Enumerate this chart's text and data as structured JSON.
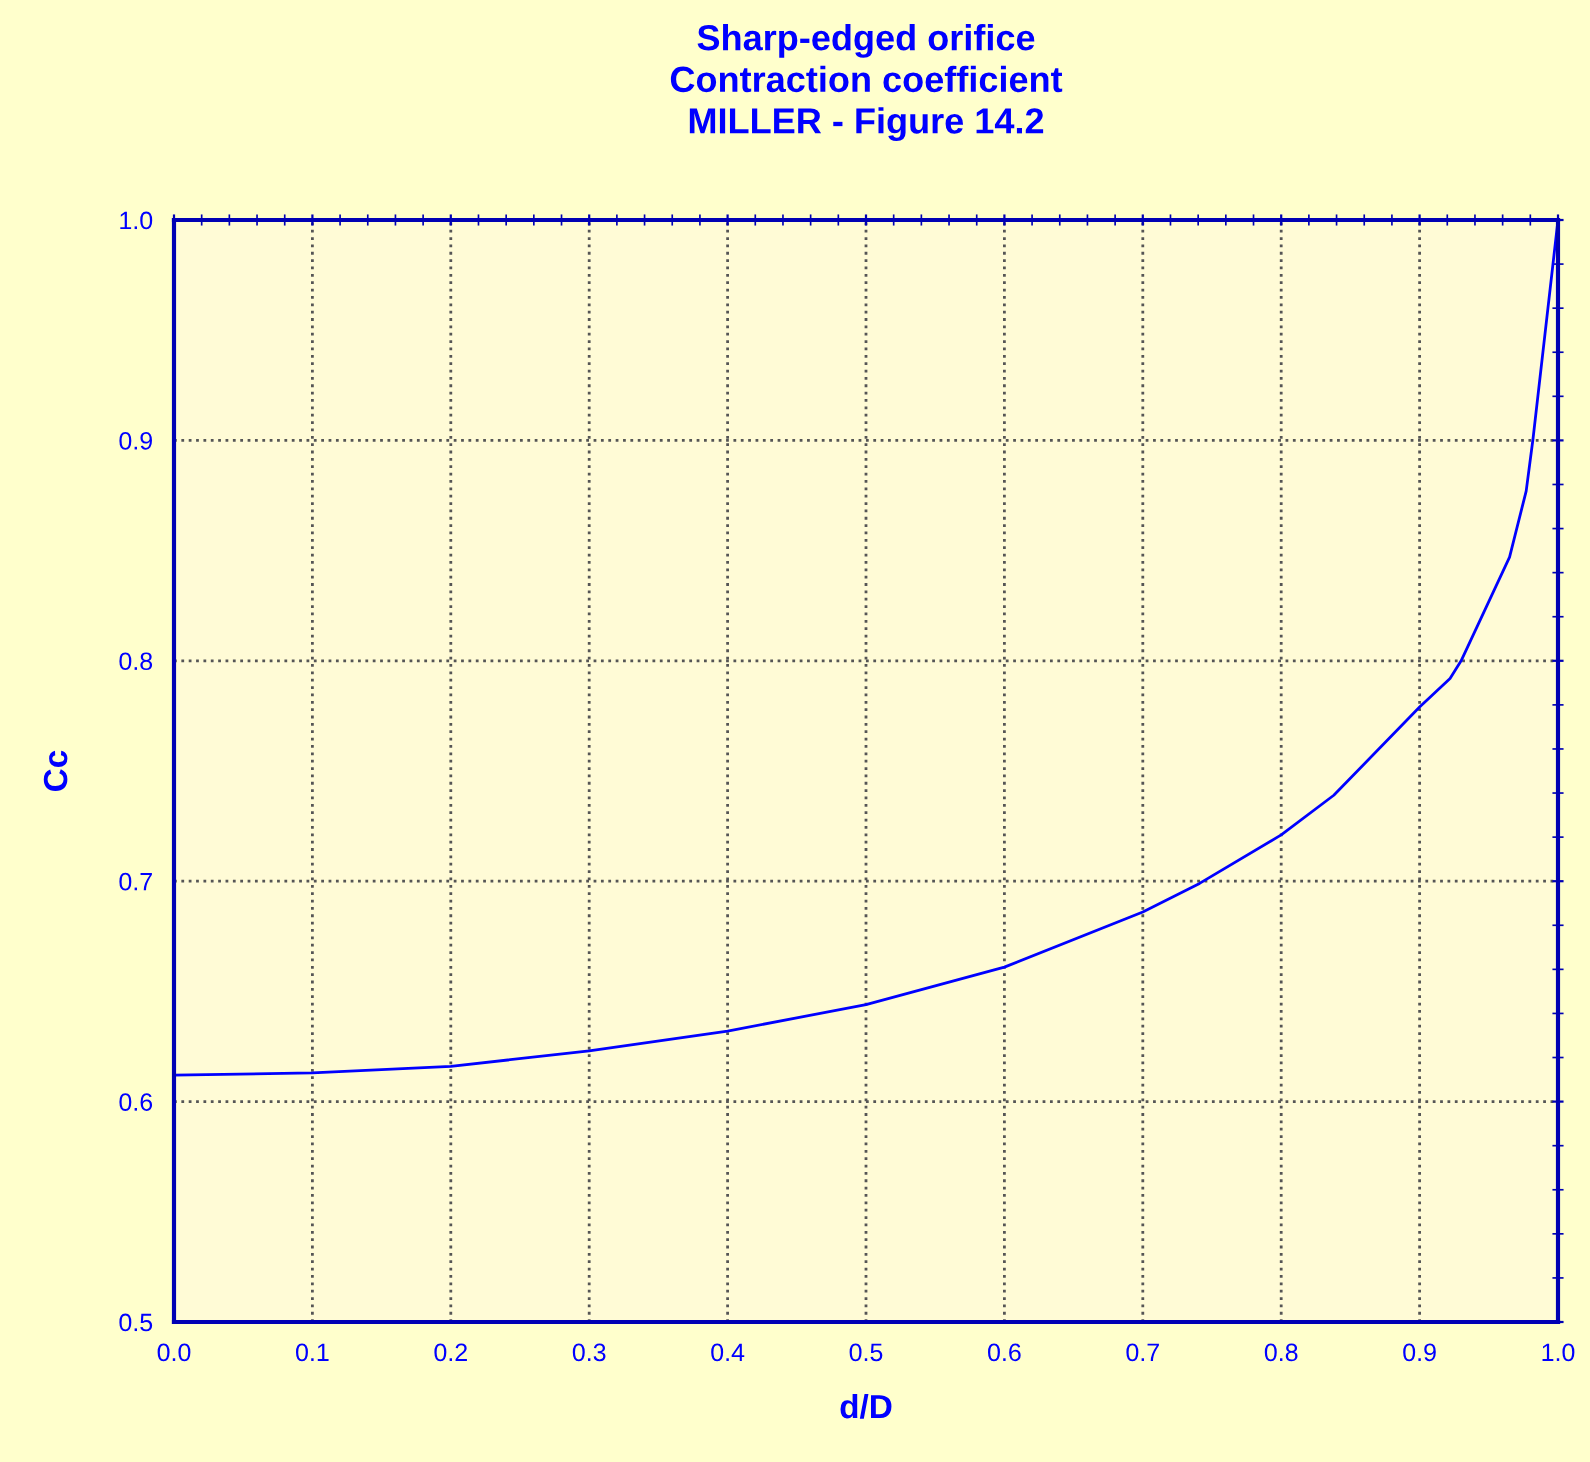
{
  "chart_data": {
    "type": "line",
    "title": "Sharp-edged orifice\nContraction coefficient\nMILLER - Figure 14.2",
    "xlabel": "d/D",
    "ylabel": "Cc",
    "x": [
      0.0,
      0.1,
      0.2,
      0.3,
      0.4,
      0.5,
      0.6,
      0.7,
      0.741,
      0.8,
      0.838,
      0.9,
      0.922,
      0.93,
      0.965,
      0.977,
      0.982,
      1.0
    ],
    "series": [
      {
        "color": "#0000ff",
        "values": [
          0.612,
          0.613,
          0.616,
          0.623,
          0.632,
          0.644,
          0.661,
          0.686,
          0.699,
          0.721,
          0.739,
          0.779,
          0.792,
          0.8,
          0.847,
          0.877,
          0.901,
          1.0
        ]
      }
    ],
    "xlim": [
      0.0,
      1.0
    ],
    "ylim": [
      0.5,
      1.0
    ],
    "xticks": [
      {
        "value": 0.0,
        "label": "0.0"
      },
      {
        "value": 0.1,
        "label": "0.1"
      },
      {
        "value": 0.2,
        "label": "0.2"
      },
      {
        "value": 0.3,
        "label": "0.3"
      },
      {
        "value": 0.4,
        "label": "0.4"
      },
      {
        "value": 0.5,
        "label": "0.5"
      },
      {
        "value": 0.6,
        "label": "0.6"
      },
      {
        "value": 0.7,
        "label": "0.7"
      },
      {
        "value": 0.8,
        "label": "0.8"
      },
      {
        "value": 0.9,
        "label": "0.9"
      },
      {
        "value": 1.0,
        "label": "1.0"
      }
    ],
    "yticks": [
      {
        "value": 0.5,
        "label": "0.5"
      },
      {
        "value": 0.6,
        "label": "0.6"
      },
      {
        "value": 0.7,
        "label": "0.7"
      },
      {
        "value": 0.8,
        "label": "0.8"
      },
      {
        "value": 0.9,
        "label": "0.9"
      },
      {
        "value": 1.0,
        "label": "1.0"
      }
    ],
    "grid": true,
    "legend": false,
    "marker": "none",
    "line_style": "solid"
  }
}
